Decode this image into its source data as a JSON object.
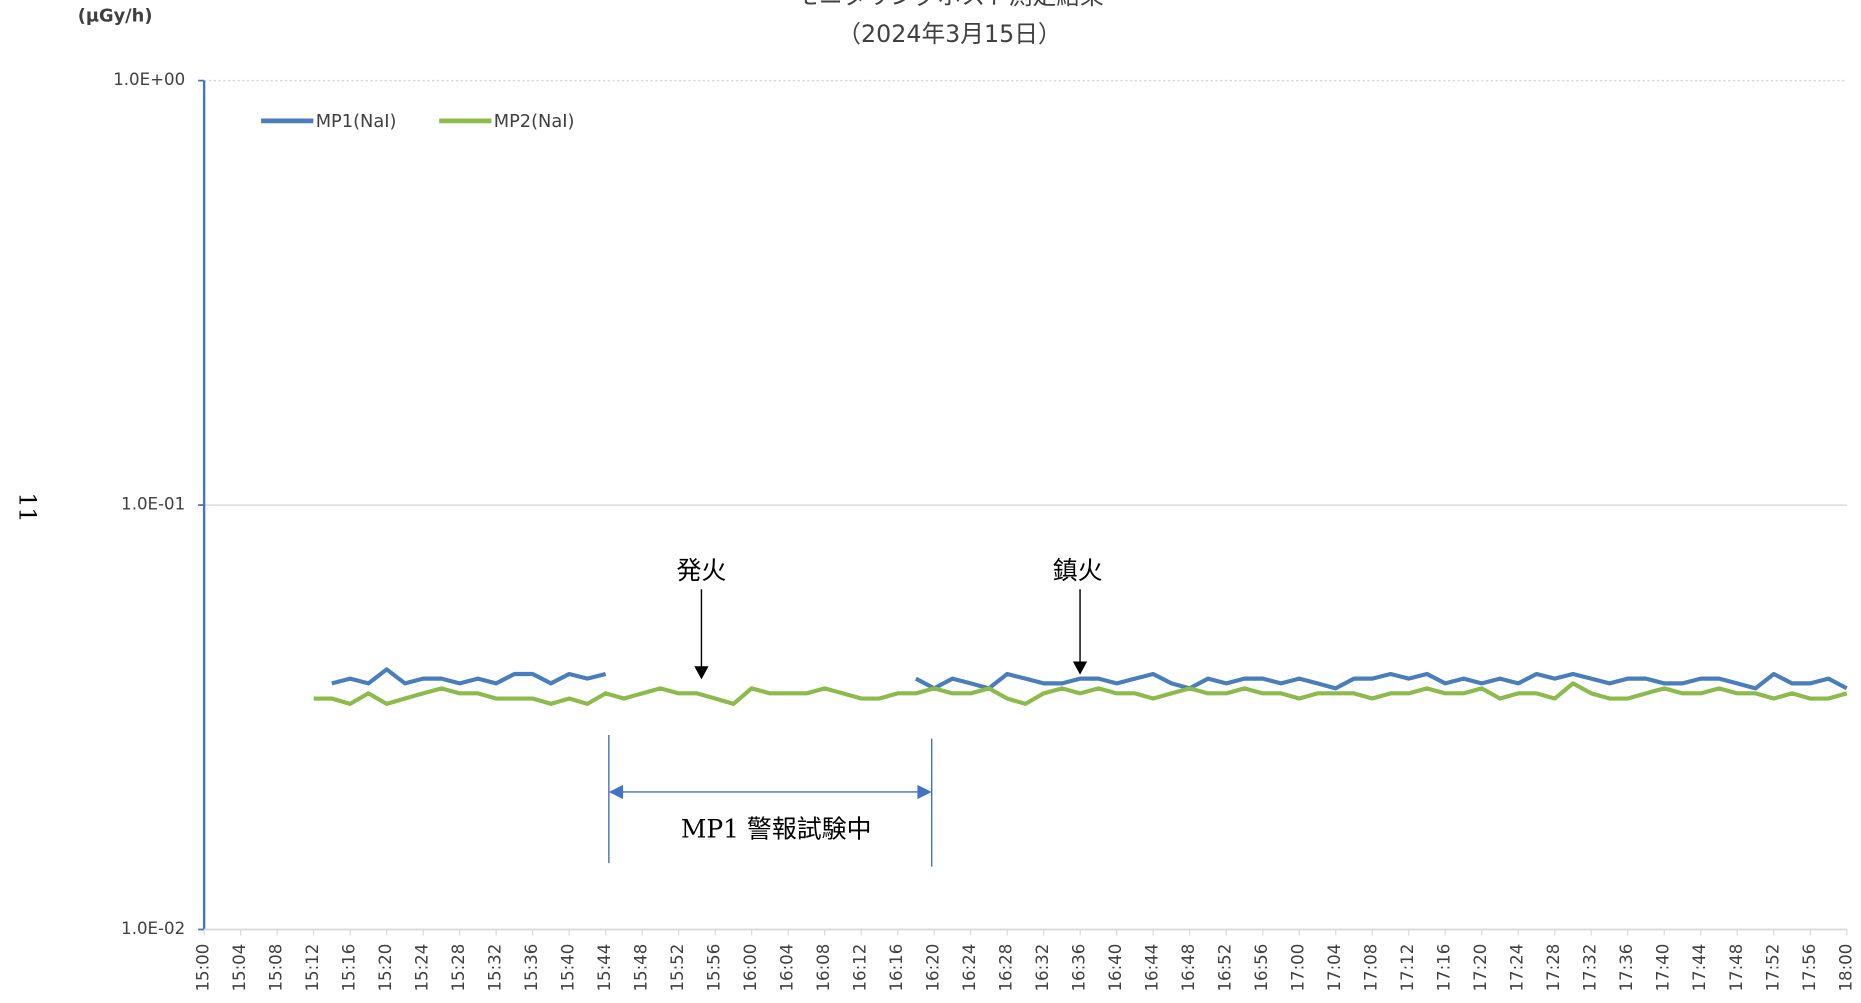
{
  "chart_data": {
    "type": "line",
    "title": "モニタリングポスト測定結果",
    "subtitle": "（2024年3月15日）",
    "y_label": "(µGy/h)",
    "page_number": "11",
    "annotations": [
      "発火",
      "鎮火",
      "MP1 警報試験中"
    ],
    "log_y": true,
    "grid": true,
    "legend_position": "top-left",
    "x": [
      "15:12",
      "15:14",
      "15:16",
      "15:18",
      "15:20",
      "15:22",
      "15:24",
      "15:26",
      "15:28",
      "15:30",
      "15:32",
      "15:34",
      "15:36",
      "15:38",
      "15:40",
      "15:42",
      "15:44",
      "15:46",
      "15:48",
      "15:50",
      "15:52",
      "15:54",
      "15:56",
      "15:58",
      "16:00",
      "16:02",
      "16:04",
      "16:06",
      "16:08",
      "16:10",
      "16:12",
      "16:14",
      "16:16",
      "16:18",
      "16:20",
      "16:22",
      "16:24",
      "16:26",
      "16:28",
      "16:30",
      "16:32",
      "16:34",
      "16:36",
      "16:38",
      "16:40",
      "16:42",
      "16:44",
      "16:46",
      "16:48",
      "16:50",
      "16:52",
      "16:54",
      "16:56",
      "16:58",
      "17:00",
      "17:02",
      "17:04",
      "17:06",
      "17:08",
      "17:10",
      "17:12",
      "17:14",
      "17:16",
      "17:18",
      "17:20",
      "17:22",
      "17:24",
      "17:26",
      "17:28",
      "17:30",
      "17:32",
      "17:34",
      "17:36",
      "17:38",
      "17:40",
      "17:42",
      "17:44",
      "17:46",
      "17:48",
      "17:50",
      "17:52",
      "17:54",
      "17:56",
      "17:58",
      "18:00"
    ],
    "series": [
      {
        "name": "MP1(NaI)",
        "color": "#4a7ebb",
        "values": [
          null,
          0.038,
          0.039,
          0.038,
          0.041,
          0.038,
          0.039,
          0.039,
          0.038,
          0.039,
          0.038,
          0.04,
          0.04,
          0.038,
          0.04,
          0.039,
          0.04,
          null,
          null,
          null,
          null,
          null,
          null,
          null,
          null,
          null,
          null,
          null,
          null,
          null,
          null,
          null,
          null,
          0.039,
          0.037,
          0.039,
          0.038,
          0.037,
          0.04,
          0.039,
          0.038,
          0.038,
          0.039,
          0.039,
          0.038,
          0.039,
          0.04,
          0.038,
          0.037,
          0.039,
          0.038,
          0.039,
          0.039,
          0.038,
          0.039,
          0.038,
          0.037,
          0.039,
          0.039,
          0.04,
          0.039,
          0.04,
          0.038,
          0.039,
          0.038,
          0.039,
          0.038,
          0.04,
          0.039,
          0.04,
          0.039,
          0.038,
          0.039,
          0.039,
          0.038,
          0.038,
          0.039,
          0.039,
          0.038,
          0.037,
          0.04,
          0.038,
          0.038,
          0.039,
          0.037
        ]
      },
      {
        "name": "MP2(NaI)",
        "color": "#8cbb4b",
        "values": [
          0.035,
          0.035,
          0.034,
          0.036,
          0.034,
          0.035,
          0.036,
          0.037,
          0.036,
          0.036,
          0.035,
          0.035,
          0.035,
          0.034,
          0.035,
          0.034,
          0.036,
          0.035,
          0.036,
          0.037,
          0.036,
          0.036,
          0.035,
          0.034,
          0.037,
          0.036,
          0.036,
          0.036,
          0.037,
          0.036,
          0.035,
          0.035,
          0.036,
          0.036,
          0.037,
          0.036,
          0.036,
          0.037,
          0.035,
          0.034,
          0.036,
          0.037,
          0.036,
          0.037,
          0.036,
          0.036,
          0.035,
          0.036,
          0.037,
          0.036,
          0.036,
          0.037,
          0.036,
          0.036,
          0.035,
          0.036,
          0.036,
          0.036,
          0.035,
          0.036,
          0.036,
          0.037,
          0.036,
          0.036,
          0.037,
          0.035,
          0.036,
          0.036,
          0.035,
          0.038,
          0.036,
          0.035,
          0.035,
          0.036,
          0.037,
          0.036,
          0.036,
          0.037,
          0.036,
          0.036,
          0.035,
          0.036,
          0.035,
          0.035,
          0.036
        ]
      }
    ],
    "xlim": [
      "15:00",
      "18:00"
    ],
    "xticks": [
      "15:00",
      "15:04",
      "15:08",
      "15:12",
      "15:16",
      "15:20",
      "15:24",
      "15:28",
      "15:32",
      "15:36",
      "15:40",
      "15:44",
      "15:48",
      "15:52",
      "15:56",
      "16:00",
      "16:04",
      "16:08",
      "16:12",
      "16:16",
      "16:20",
      "16:24",
      "16:28",
      "16:32",
      "16:36",
      "16:40",
      "16:44",
      "16:48",
      "16:52",
      "16:56",
      "17:00",
      "17:04",
      "17:08",
      "17:12",
      "17:16",
      "17:20",
      "17:24",
      "17:28",
      "17:32",
      "17:36",
      "17:40",
      "17:44",
      "17:48",
      "17:52",
      "17:56",
      "18:00"
    ],
    "ylim": [
      0.01,
      1
    ],
    "yticks": [
      {
        "value": 0.01,
        "label": "1.0E-02"
      },
      {
        "value": 0.1,
        "label": "1.0E-01"
      },
      {
        "value": 1,
        "label": "1.0E+00"
      }
    ]
  }
}
